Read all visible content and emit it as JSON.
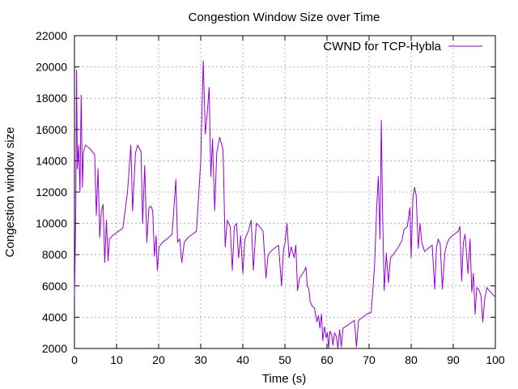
{
  "chart_data": {
    "type": "line",
    "title": "Congestion Window Size over Time",
    "xlabel": "Time (s)",
    "ylabel": "Congestion window size",
    "xlim": [
      0,
      100
    ],
    "ylim": [
      2000,
      22000
    ],
    "xticks": [
      0,
      10,
      20,
      30,
      40,
      50,
      60,
      70,
      80,
      90,
      100
    ],
    "yticks": [
      2000,
      4000,
      6000,
      8000,
      10000,
      12000,
      14000,
      16000,
      18000,
      20000,
      22000
    ],
    "grid": true,
    "legend_position": "top-right",
    "series": [
      {
        "name": "CWND for TCP-Hybla",
        "color": "#9400d3",
        "points": [
          [
            0.0,
            5300
          ],
          [
            0.3,
            10500
          ],
          [
            0.5,
            19800
          ],
          [
            0.7,
            13500
          ],
          [
            1.0,
            15000
          ],
          [
            1.3,
            12000
          ],
          [
            1.6,
            18200
          ],
          [
            1.9,
            12300
          ],
          [
            2.1,
            14500
          ],
          [
            2.6,
            15000
          ],
          [
            3.6,
            14800
          ],
          [
            4.8,
            14400
          ],
          [
            5.2,
            10500
          ],
          [
            5.6,
            13500
          ],
          [
            6.0,
            9100
          ],
          [
            6.4,
            10800
          ],
          [
            6.8,
            11200
          ],
          [
            7.2,
            7500
          ],
          [
            7.6,
            10200
          ],
          [
            8.0,
            7600
          ],
          [
            8.3,
            9000
          ],
          [
            9.0,
            9200
          ],
          [
            10.0,
            9400
          ],
          [
            11.5,
            9700
          ],
          [
            12.6,
            12000
          ],
          [
            13.4,
            15000
          ],
          [
            13.8,
            10800
          ],
          [
            14.5,
            14500
          ],
          [
            15.0,
            15000
          ],
          [
            15.8,
            14600
          ],
          [
            16.2,
            10000
          ],
          [
            16.7,
            13700
          ],
          [
            17.2,
            8800
          ],
          [
            17.7,
            11000
          ],
          [
            18.2,
            11100
          ],
          [
            18.6,
            10800
          ],
          [
            19.0,
            7900
          ],
          [
            19.4,
            9200
          ],
          [
            19.7,
            7000
          ],
          [
            20.1,
            8500
          ],
          [
            21.0,
            8800
          ],
          [
            22.0,
            9000
          ],
          [
            23.2,
            9300
          ],
          [
            24.1,
            12800
          ],
          [
            24.5,
            8800
          ],
          [
            25.0,
            9000
          ],
          [
            25.5,
            7500
          ],
          [
            26.1,
            8800
          ],
          [
            27.0,
            9100
          ],
          [
            28.0,
            9300
          ],
          [
            29.0,
            9500
          ],
          [
            30.0,
            14000
          ],
          [
            30.6,
            20400
          ],
          [
            31.1,
            15700
          ],
          [
            31.6,
            17200
          ],
          [
            32.0,
            18700
          ],
          [
            32.4,
            13000
          ],
          [
            32.8,
            15400
          ],
          [
            33.3,
            10800
          ],
          [
            33.8,
            14500
          ],
          [
            34.5,
            15500
          ],
          [
            35.3,
            14700
          ],
          [
            35.8,
            8500
          ],
          [
            36.3,
            10200
          ],
          [
            37.0,
            9800
          ],
          [
            37.5,
            7000
          ],
          [
            38.0,
            9800
          ],
          [
            38.5,
            10000
          ],
          [
            39.0,
            7800
          ],
          [
            39.5,
            9200
          ],
          [
            40.0,
            6800
          ],
          [
            40.5,
            9000
          ],
          [
            41.3,
            9500
          ],
          [
            42.0,
            10200
          ],
          [
            42.5,
            7000
          ],
          [
            43.2,
            10000
          ],
          [
            44.0,
            9800
          ],
          [
            44.8,
            9500
          ],
          [
            45.5,
            6500
          ],
          [
            46.0,
            8000
          ],
          [
            47.0,
            8300
          ],
          [
            48.5,
            8600
          ],
          [
            49.2,
            6000
          ],
          [
            49.7,
            8400
          ],
          [
            50.0,
            8700
          ],
          [
            50.5,
            10000
          ],
          [
            51.0,
            7800
          ],
          [
            51.5,
            8500
          ],
          [
            52.2,
            7800
          ],
          [
            52.6,
            8600
          ],
          [
            53.0,
            5700
          ],
          [
            53.5,
            6500
          ],
          [
            54.5,
            6900
          ],
          [
            55.0,
            7200
          ],
          [
            55.3,
            6000
          ],
          [
            55.7,
            5800
          ],
          [
            56.0,
            5000
          ],
          [
            56.5,
            4700
          ],
          [
            57.0,
            4600
          ],
          [
            57.6,
            3700
          ],
          [
            58.0,
            4100
          ],
          [
            58.3,
            3300
          ],
          [
            58.7,
            4200
          ],
          [
            59.0,
            2500
          ],
          [
            59.4,
            3400
          ],
          [
            59.8,
            2700
          ],
          [
            60.1,
            3000
          ],
          [
            60.4,
            2000
          ],
          [
            60.7,
            3100
          ],
          [
            61.1,
            2900
          ],
          [
            61.4,
            2200
          ],
          [
            61.8,
            3000
          ],
          [
            62.2,
            2800
          ],
          [
            62.6,
            2000
          ],
          [
            63.0,
            3200
          ],
          [
            63.4,
            2100
          ],
          [
            63.8,
            3300
          ],
          [
            65.0,
            3500
          ],
          [
            66.5,
            3800
          ],
          [
            67.0,
            2100
          ],
          [
            67.5,
            3800
          ],
          [
            68.5,
            4000
          ],
          [
            69.5,
            4200
          ],
          [
            70.5,
            4300
          ],
          [
            71.3,
            7300
          ],
          [
            71.8,
            11000
          ],
          [
            72.2,
            13000
          ],
          [
            72.6,
            9000
          ],
          [
            72.9,
            16600
          ],
          [
            73.2,
            11000
          ],
          [
            73.6,
            5700
          ],
          [
            74.1,
            8100
          ],
          [
            74.6,
            6200
          ],
          [
            75.1,
            7800
          ],
          [
            76.0,
            8100
          ],
          [
            77.0,
            8500
          ],
          [
            77.8,
            8900
          ],
          [
            78.3,
            9600
          ],
          [
            79.1,
            9800
          ],
          [
            79.7,
            11000
          ],
          [
            80.0,
            7800
          ],
          [
            80.4,
            11600
          ],
          [
            80.8,
            12300
          ],
          [
            81.2,
            11800
          ],
          [
            81.7,
            8400
          ],
          [
            82.1,
            10000
          ],
          [
            82.5,
            8800
          ],
          [
            83.2,
            8200
          ],
          [
            84.0,
            8400
          ],
          [
            85.0,
            8600
          ],
          [
            85.6,
            5800
          ],
          [
            86.0,
            8400
          ],
          [
            86.4,
            9000
          ],
          [
            86.9,
            8700
          ],
          [
            87.4,
            5800
          ],
          [
            88.0,
            8100
          ],
          [
            88.5,
            8700
          ],
          [
            89.0,
            9000
          ],
          [
            90.2,
            9300
          ],
          [
            91.2,
            9500
          ],
          [
            91.6,
            9800
          ],
          [
            92.0,
            6300
          ],
          [
            92.4,
            8800
          ],
          [
            92.8,
            9300
          ],
          [
            93.5,
            6800
          ],
          [
            94.0,
            9000
          ],
          [
            94.4,
            5600
          ],
          [
            94.8,
            6800
          ],
          [
            95.2,
            4200
          ],
          [
            95.6,
            5900
          ],
          [
            96.0,
            5800
          ],
          [
            96.6,
            5400
          ],
          [
            97.0,
            3700
          ],
          [
            97.5,
            5200
          ],
          [
            98.0,
            5900
          ],
          [
            98.5,
            5700
          ],
          [
            99.0,
            5600
          ],
          [
            99.5,
            5400
          ],
          [
            100.0,
            5300
          ]
        ]
      }
    ]
  }
}
